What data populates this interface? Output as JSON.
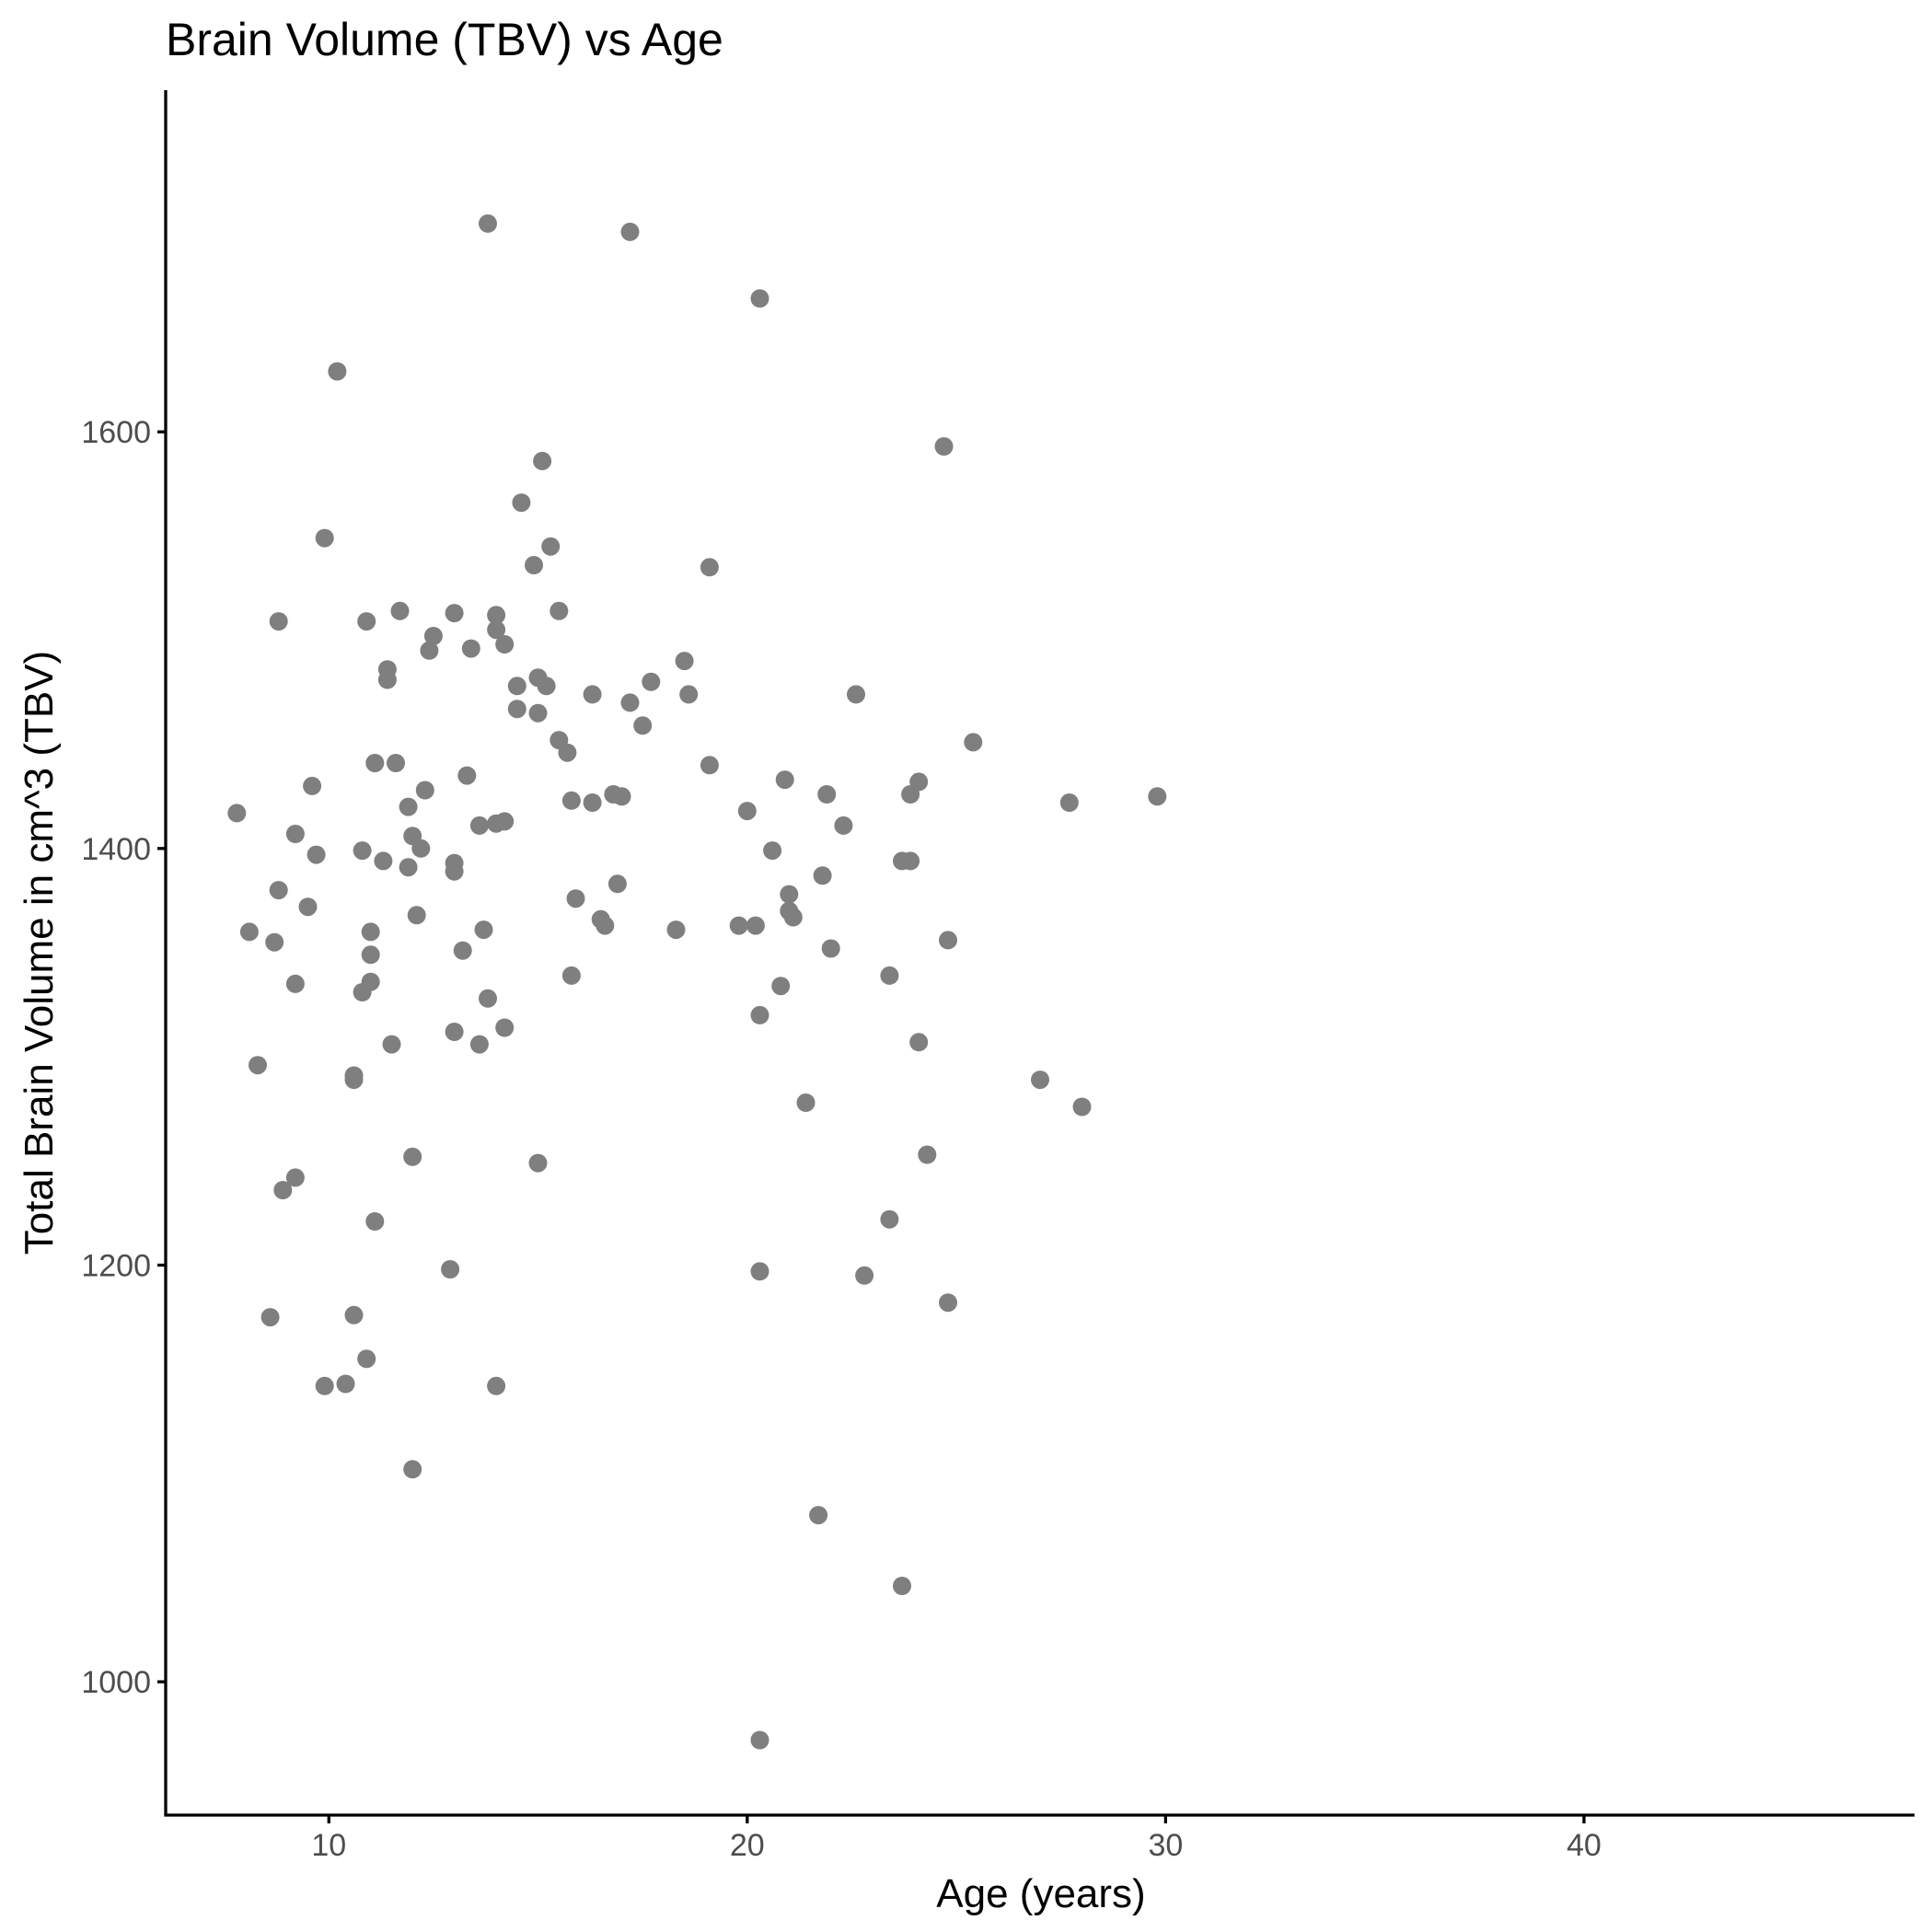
{
  "chart_data": {
    "type": "scatter",
    "title": "Brain Volume (TBV) vs Age",
    "xlabel": "Age (years)",
    "ylabel": "Total Brain Volume in cm^3 (TBV)",
    "xlim": [
      6.1,
      47.9
    ],
    "ylim": [
      936,
      1764
    ],
    "x_ticks": [
      10,
      20,
      30,
      40
    ],
    "y_ticks": [
      1000,
      1200,
      1400,
      1600
    ],
    "grid": false,
    "legend": "none",
    "point_color": "#7f7f7f",
    "points": [
      [
        13.8,
        1700
      ],
      [
        17.2,
        1696
      ],
      [
        20.3,
        1664
      ],
      [
        10.2,
        1629
      ],
      [
        24.7,
        1593
      ],
      [
        15.1,
        1586
      ],
      [
        14.6,
        1566
      ],
      [
        9.9,
        1549
      ],
      [
        15.3,
        1545
      ],
      [
        14.9,
        1536
      ],
      [
        19.1,
        1535
      ],
      [
        15.5,
        1514
      ],
      [
        11.7,
        1514
      ],
      [
        13.0,
        1513
      ],
      [
        14.0,
        1512
      ],
      [
        8.8,
        1509
      ],
      [
        10.9,
        1509
      ],
      [
        14.0,
        1505
      ],
      [
        12.5,
        1502
      ],
      [
        14.2,
        1498
      ],
      [
        13.4,
        1496
      ],
      [
        12.4,
        1495
      ],
      [
        18.5,
        1490
      ],
      [
        11.4,
        1486
      ],
      [
        11.4,
        1481
      ],
      [
        15.0,
        1482
      ],
      [
        17.7,
        1480
      ],
      [
        14.5,
        1478
      ],
      [
        15.2,
        1478
      ],
      [
        16.3,
        1474
      ],
      [
        18.6,
        1474
      ],
      [
        22.6,
        1474
      ],
      [
        17.2,
        1470
      ],
      [
        14.5,
        1467
      ],
      [
        15.0,
        1465
      ],
      [
        17.5,
        1459
      ],
      [
        15.5,
        1452
      ],
      [
        25.4,
        1451
      ],
      [
        15.7,
        1446
      ],
      [
        11.1,
        1441
      ],
      [
        11.6,
        1441
      ],
      [
        19.1,
        1440
      ],
      [
        13.3,
        1435
      ],
      [
        20.9,
        1433
      ],
      [
        24.1,
        1432
      ],
      [
        9.6,
        1430
      ],
      [
        12.3,
        1428
      ],
      [
        16.8,
        1426
      ],
      [
        21.9,
        1426
      ],
      [
        23.9,
        1426
      ],
      [
        17.0,
        1425
      ],
      [
        29.8,
        1425
      ],
      [
        15.8,
        1423
      ],
      [
        16.3,
        1422
      ],
      [
        27.7,
        1422
      ],
      [
        11.9,
        1420
      ],
      [
        20.0,
        1418
      ],
      [
        7.8,
        1417
      ],
      [
        14.2,
        1413
      ],
      [
        14.0,
        1412
      ],
      [
        13.6,
        1411
      ],
      [
        22.3,
        1411
      ],
      [
        9.2,
        1407
      ],
      [
        12.0,
        1406
      ],
      [
        12.2,
        1400
      ],
      [
        10.8,
        1399
      ],
      [
        9.7,
        1397
      ],
      [
        20.6,
        1399
      ],
      [
        11.3,
        1394
      ],
      [
        13.0,
        1393
      ],
      [
        23.7,
        1394
      ],
      [
        23.9,
        1394
      ],
      [
        11.9,
        1391
      ],
      [
        13.0,
        1389
      ],
      [
        21.8,
        1387
      ],
      [
        16.9,
        1383
      ],
      [
        8.8,
        1380
      ],
      [
        21.0,
        1378
      ],
      [
        15.9,
        1376
      ],
      [
        9.5,
        1372
      ],
      [
        21.0,
        1370
      ],
      [
        12.1,
        1368
      ],
      [
        16.5,
        1366
      ],
      [
        21.1,
        1367
      ],
      [
        16.6,
        1363
      ],
      [
        19.8,
        1363
      ],
      [
        20.2,
        1363
      ],
      [
        8.1,
        1360
      ],
      [
        11.0,
        1360
      ],
      [
        13.7,
        1361
      ],
      [
        18.3,
        1361
      ],
      [
        24.8,
        1356
      ],
      [
        8.7,
        1355
      ],
      [
        22.0,
        1352
      ],
      [
        13.2,
        1351
      ],
      [
        11.0,
        1349
      ],
      [
        15.8,
        1339
      ],
      [
        23.4,
        1339
      ],
      [
        11.0,
        1336
      ],
      [
        9.2,
        1335
      ],
      [
        20.8,
        1334
      ],
      [
        10.8,
        1331
      ],
      [
        13.8,
        1328
      ],
      [
        20.3,
        1320
      ],
      [
        14.2,
        1314
      ],
      [
        13.0,
        1312
      ],
      [
        11.5,
        1306
      ],
      [
        13.6,
        1306
      ],
      [
        24.1,
        1307
      ],
      [
        8.3,
        1296
      ],
      [
        10.6,
        1291
      ],
      [
        10.6,
        1289
      ],
      [
        27.0,
        1289
      ],
      [
        21.4,
        1278
      ],
      [
        28.0,
        1276
      ],
      [
        12.0,
        1252
      ],
      [
        24.3,
        1253
      ],
      [
        15.0,
        1249
      ],
      [
        9.2,
        1242
      ],
      [
        8.9,
        1236
      ],
      [
        23.4,
        1222
      ],
      [
        11.1,
        1221
      ],
      [
        12.9,
        1198
      ],
      [
        20.3,
        1197
      ],
      [
        22.8,
        1195
      ],
      [
        24.8,
        1182
      ],
      [
        10.6,
        1176
      ],
      [
        8.6,
        1175
      ],
      [
        10.9,
        1155
      ],
      [
        10.4,
        1143
      ],
      [
        9.9,
        1142
      ],
      [
        14.0,
        1142
      ],
      [
        12.0,
        1102
      ],
      [
        21.7,
        1080
      ],
      [
        23.7,
        1046
      ],
      [
        20.3,
        972
      ]
    ]
  }
}
